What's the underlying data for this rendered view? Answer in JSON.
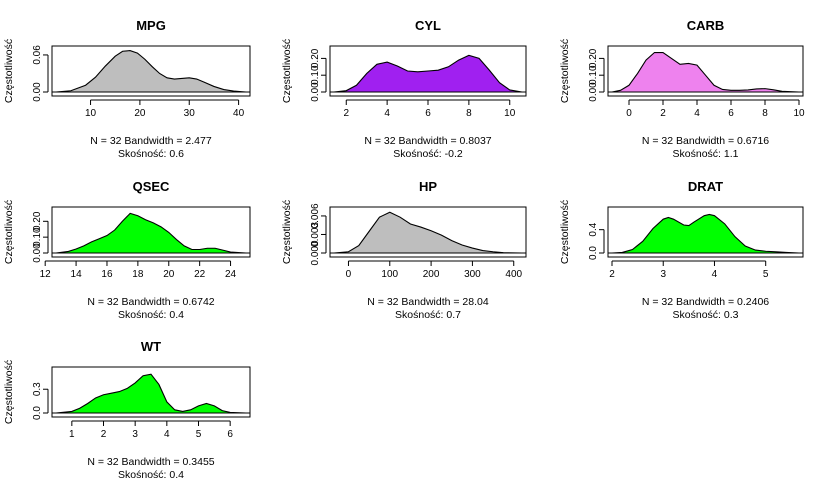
{
  "chart_data": [
    {
      "type": "area",
      "title": "MPG",
      "ylabel": "Częstotliwość",
      "xlabel": "N = 32   Bandwidth = 2.477",
      "note": "Skośność: 0.6",
      "fill": "#bebebe",
      "xlim": [
        3.0,
        41.5
      ],
      "ylim": [
        0,
        0.068
      ],
      "xticks": [
        10,
        20,
        30,
        40
      ],
      "yticks": [
        0.0,
        0.06
      ],
      "ytick_labels": [
        "0.00",
        "0.06"
      ],
      "x": [
        3.0,
        6,
        9,
        11,
        13,
        15,
        16.5,
        18,
        19.5,
        21,
        22.5,
        24,
        25.5,
        27,
        28.5,
        30,
        31.5,
        33,
        35,
        37,
        39,
        41.5
      ],
      "y": [
        0.0,
        0.002,
        0.011,
        0.024,
        0.042,
        0.058,
        0.066,
        0.067,
        0.063,
        0.053,
        0.041,
        0.03,
        0.023,
        0.021,
        0.022,
        0.023,
        0.021,
        0.016,
        0.009,
        0.004,
        0.0015,
        0.0
      ]
    },
    {
      "type": "area",
      "title": "CYL",
      "ylabel": "Częstotliwość",
      "xlabel": "N = 32   Bandwidth = 0.8037",
      "note": "Skośność: -0.2",
      "fill": "#a020f0",
      "xlim": [
        1.4,
        10.6
      ],
      "ylim": [
        0,
        0.25
      ],
      "xticks": [
        2,
        4,
        6,
        8,
        10
      ],
      "yticks": [
        0.0,
        0.1,
        0.2
      ],
      "ytick_labels": [
        "0.00",
        "0.10",
        "0.20"
      ],
      "x": [
        1.4,
        2,
        2.5,
        3,
        3.5,
        4,
        4.5,
        5,
        5.5,
        6,
        6.5,
        7,
        7.5,
        8,
        8.5,
        9,
        9.5,
        10,
        10.6
      ],
      "y": [
        0.0,
        0.008,
        0.04,
        0.11,
        0.165,
        0.178,
        0.155,
        0.125,
        0.12,
        0.125,
        0.13,
        0.15,
        0.19,
        0.218,
        0.2,
        0.13,
        0.055,
        0.012,
        0.0
      ]
    },
    {
      "type": "area",
      "title": "CARB",
      "ylabel": "Częstotliwość",
      "xlabel": "N = 32   Bandwidth = 0.6716",
      "note": "Skośność: 1.1",
      "fill": "#ee82ee",
      "xlim": [
        -1.0,
        10.0
      ],
      "ylim": [
        0,
        0.25
      ],
      "xticks": [
        0,
        2,
        4,
        6,
        8,
        10
      ],
      "yticks": [
        0.0,
        0.1,
        0.2
      ],
      "ytick_labels": [
        "0.00",
        "0.10",
        "0.20"
      ],
      "x": [
        -1.0,
        -0.5,
        0,
        0.5,
        1,
        1.5,
        2,
        2.5,
        3,
        3.5,
        4,
        4.5,
        5,
        5.5,
        6,
        6.5,
        7,
        7.5,
        8,
        8.5,
        9,
        10
      ],
      "y": [
        0.0,
        0.01,
        0.04,
        0.11,
        0.19,
        0.235,
        0.235,
        0.2,
        0.165,
        0.17,
        0.16,
        0.1,
        0.04,
        0.015,
        0.01,
        0.01,
        0.012,
        0.018,
        0.02,
        0.013,
        0.004,
        0.0
      ]
    },
    {
      "type": "area",
      "title": "QSEC",
      "ylabel": "Częstotliwość",
      "xlabel": "N = 32   Bandwidth = 0.6742",
      "note": "Skośność: 0.4",
      "fill": "#00ff00",
      "xlim": [
        12.7,
        25.0
      ],
      "ylim": [
        0,
        0.265
      ],
      "xticks": [
        12,
        14,
        16,
        18,
        20,
        22,
        24
      ],
      "yticks": [
        0.0,
        0.1,
        0.2
      ],
      "ytick_labels": [
        "0.00",
        "0.10",
        "0.20"
      ],
      "x": [
        12.7,
        13.5,
        14,
        14.5,
        15,
        15.5,
        16,
        16.5,
        17,
        17.5,
        18,
        18.5,
        19,
        19.5,
        20,
        20.5,
        21,
        21.5,
        22,
        22.5,
        23,
        23.5,
        24,
        25
      ],
      "y": [
        0.0,
        0.01,
        0.025,
        0.045,
        0.07,
        0.09,
        0.11,
        0.145,
        0.2,
        0.25,
        0.235,
        0.21,
        0.19,
        0.165,
        0.13,
        0.085,
        0.045,
        0.022,
        0.022,
        0.03,
        0.03,
        0.018,
        0.006,
        0.0
      ]
    },
    {
      "type": "area",
      "title": "HP",
      "ylabel": "Częstotliwość",
      "xlabel": "N = 32   Bandwidth = 28.04",
      "note": "Skośność: 0.7",
      "fill": "#bebebe",
      "xlim": [
        -35,
        420
      ],
      "ylim": [
        0,
        0.0068
      ],
      "xticks": [
        0,
        100,
        200,
        300,
        400
      ],
      "yticks": [
        0.0,
        0.003,
        0.006
      ],
      "ytick_labels": [
        "0.000",
        "0.003",
        "0.006"
      ],
      "x": [
        -35,
        0,
        25,
        50,
        75,
        100,
        125,
        150,
        175,
        200,
        225,
        250,
        275,
        300,
        325,
        350,
        375,
        420
      ],
      "y": [
        0.0,
        0.0002,
        0.0012,
        0.0035,
        0.0058,
        0.0066,
        0.0058,
        0.0047,
        0.0042,
        0.0036,
        0.0029,
        0.002,
        0.0013,
        0.0008,
        0.0004,
        0.0002,
        5e-05,
        0.0
      ]
    },
    {
      "type": "area",
      "title": "DRAT",
      "ylabel": "Częstotliwość",
      "xlabel": "N = 32   Bandwidth = 0.2406",
      "note": "Skośność: 0.3",
      "fill": "#00ff00",
      "xlim": [
        2.0,
        5.65
      ],
      "ylim": [
        0,
        0.72
      ],
      "xticks": [
        2,
        3,
        4,
        5
      ],
      "yticks": [
        0.0,
        0.4
      ],
      "ytick_labels": [
        "0.0",
        "0.4"
      ],
      "x": [
        2.0,
        2.2,
        2.4,
        2.6,
        2.8,
        3.0,
        3.1,
        3.2,
        3.4,
        3.5,
        3.6,
        3.8,
        3.9,
        4.0,
        4.2,
        4.4,
        4.6,
        4.8,
        5.0,
        5.2,
        5.4,
        5.65
      ],
      "y": [
        0.0,
        0.01,
        0.06,
        0.2,
        0.42,
        0.58,
        0.61,
        0.58,
        0.48,
        0.47,
        0.53,
        0.64,
        0.66,
        0.64,
        0.5,
        0.28,
        0.12,
        0.05,
        0.03,
        0.02,
        0.01,
        0.0
      ]
    },
    {
      "type": "area",
      "title": "WT",
      "ylabel": "Częstotliwość",
      "xlabel": "N = 32   Bandwidth = 0.3455",
      "note": "Skośność: 0.4",
      "fill": "#00ff00",
      "xlim": [
        0.5,
        6.5
      ],
      "ylim": [
        0,
        0.53
      ],
      "xticks": [
        1,
        2,
        3,
        4,
        5,
        6
      ],
      "yticks": [
        0.0,
        0.3
      ],
      "ytick_labels": [
        "0.0",
        "0.3"
      ],
      "x": [
        0.5,
        1.0,
        1.25,
        1.5,
        1.75,
        2.0,
        2.25,
        2.5,
        2.75,
        3.0,
        3.25,
        3.5,
        3.75,
        4.0,
        4.25,
        4.5,
        4.75,
        5.0,
        5.25,
        5.5,
        5.75,
        6.0,
        6.5
      ],
      "y": [
        0.0,
        0.02,
        0.06,
        0.12,
        0.19,
        0.23,
        0.25,
        0.27,
        0.31,
        0.38,
        0.47,
        0.49,
        0.36,
        0.14,
        0.04,
        0.02,
        0.04,
        0.09,
        0.12,
        0.09,
        0.03,
        0.008,
        0.0
      ]
    }
  ]
}
